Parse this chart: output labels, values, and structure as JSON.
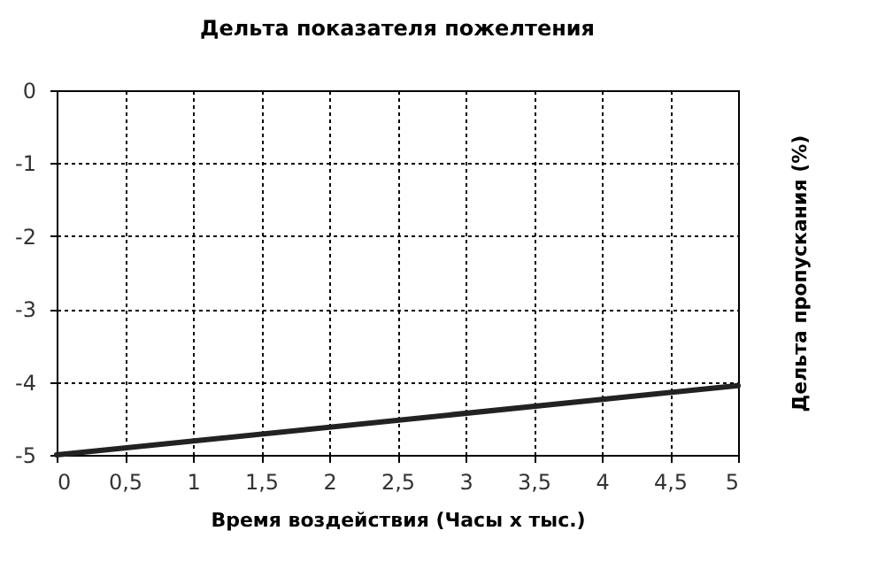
{
  "chart_data": {
    "type": "line",
    "title": "Дельта показателя пожелтения",
    "xlabel": "Время воздействия (Часы х тыс.)",
    "ylabel": "Дельта пропускания (%)",
    "x": [
      0,
      5
    ],
    "series": [
      {
        "color": "#222222",
        "values": [
          -5,
          -4.05
        ]
      }
    ],
    "xlim": [
      0,
      5
    ],
    "xticks": [
      0,
      {
        "value": 0.5,
        "label": "0,5"
      },
      1,
      {
        "value": 1.5,
        "label": "1,5"
      },
      2,
      {
        "value": 2.5,
        "label": "2,5"
      },
      3,
      {
        "value": 3.5,
        "label": "3,5"
      },
      4,
      {
        "value": 4.5,
        "label": "4,5"
      },
      5
    ],
    "ylim": [
      -5,
      0
    ],
    "yticks": [
      -5,
      -4,
      -3,
      -2,
      -1,
      0
    ],
    "grid": true,
    "marker": "none",
    "line_style": "solid"
  }
}
